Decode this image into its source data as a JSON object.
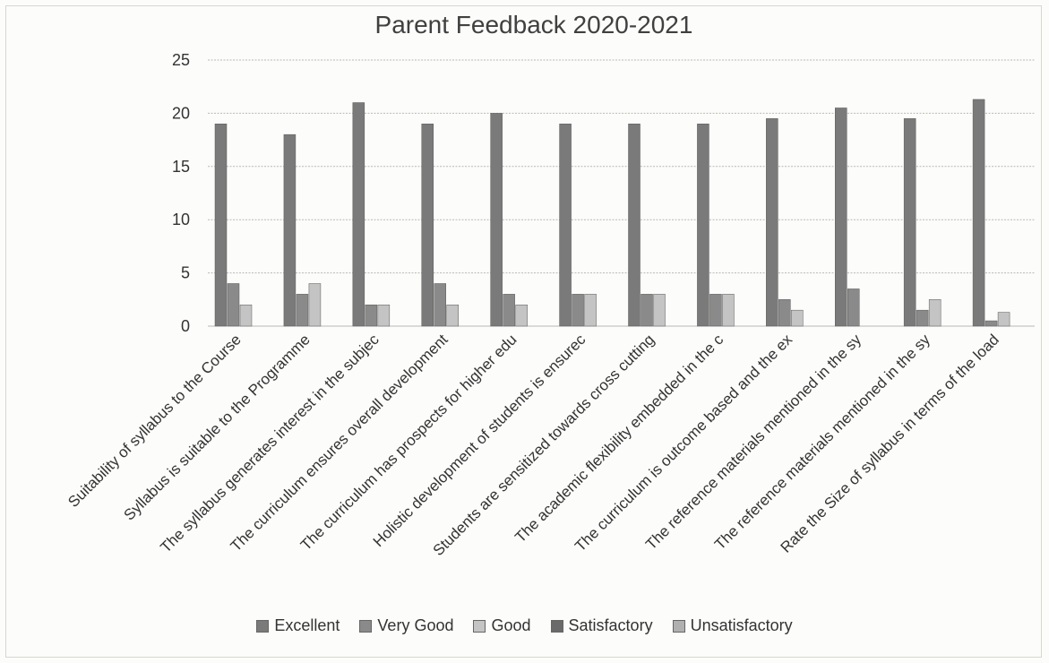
{
  "chart_data": {
    "type": "bar",
    "title": "Parent Feedback 2020-2021",
    "xlabel": "",
    "ylabel": "",
    "ylim": [
      0,
      25
    ],
    "yticks": [
      0,
      5,
      10,
      15,
      20,
      25
    ],
    "grid": true,
    "legend_position": "bottom",
    "categories": [
      "Suitability of syllabus to the Course",
      "Syllabus is suitable to the Programme",
      "The syllabus generates interest in the subjec",
      "The curriculum ensures overall development",
      "The curriculum has prospects for higher edu",
      "Holistic development of students  is ensurec",
      "Students are sensitized towards cross cutting",
      "The  academic  flexibility embedded  in the c",
      "The  curriculum is outcome based and the ex",
      "The reference materials mentioned in the sy",
      "The reference materials mentioned in the sy",
      "Rate the Size of syllabus in terms of the load"
    ],
    "series": [
      {
        "name": "Excellent",
        "color": "#7a7a7a",
        "values": [
          19,
          18,
          21,
          19,
          20,
          19,
          19,
          19,
          19.5,
          20.5,
          19.5,
          21.3
        ]
      },
      {
        "name": "Very Good",
        "color": "#8a8a8a",
        "values": [
          4,
          3,
          2,
          4,
          3,
          3,
          3,
          3,
          2.5,
          3.5,
          1.5,
          0.5
        ]
      },
      {
        "name": "Good",
        "color": "#c4c4c4",
        "values": [
          2,
          4,
          2,
          2,
          2,
          3,
          3,
          3,
          1.5,
          0,
          2.5,
          1.3
        ]
      },
      {
        "name": "Satisfactory",
        "color": "#6a6a6a",
        "values": [
          0,
          0,
          0,
          0,
          0,
          0,
          0,
          0,
          0,
          0,
          0,
          0
        ]
      },
      {
        "name": "Unsatisfactory",
        "color": "#b0b0b0",
        "values": [
          0,
          0,
          0,
          0,
          0,
          0,
          0,
          0,
          0,
          0,
          0,
          0
        ]
      }
    ]
  }
}
